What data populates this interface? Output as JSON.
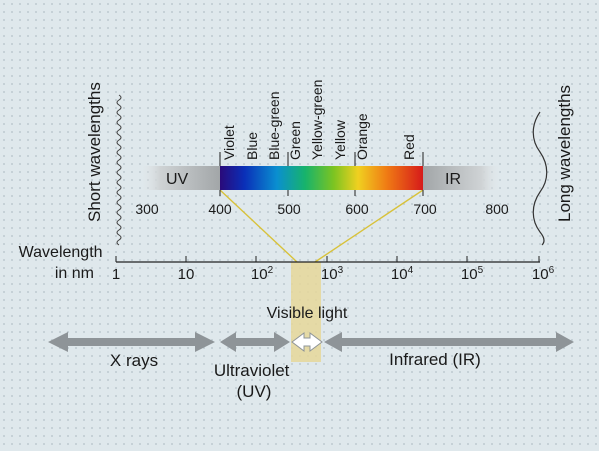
{
  "diagram": {
    "side_labels": {
      "short": "Short wavelengths",
      "long": "Long wavelengths"
    },
    "visible_bands": [
      {
        "name": "Violet"
      },
      {
        "name": "Blue"
      },
      {
        "name": "Blue-green"
      },
      {
        "name": "Green"
      },
      {
        "name": "Yellow-green"
      },
      {
        "name": "Yellow"
      },
      {
        "name": "Orange"
      },
      {
        "name": "Red"
      }
    ],
    "spectrum_bar": {
      "uv_label": "UV",
      "ir_label": "IR",
      "ticks": [
        "300",
        "400",
        "500",
        "600",
        "700",
        "800"
      ]
    },
    "wavelength_axis": {
      "label_line1": "Wavelength",
      "label_line2": "in nm",
      "ticks": [
        {
          "base": "1",
          "exp": ""
        },
        {
          "base": "10",
          "exp": ""
        },
        {
          "base": "10",
          "exp": "2"
        },
        {
          "base": "10",
          "exp": "3"
        },
        {
          "base": "10",
          "exp": "4"
        },
        {
          "base": "10",
          "exp": "5"
        },
        {
          "base": "10",
          "exp": "6"
        }
      ]
    },
    "regions": {
      "visible": "Visible light",
      "xrays": "X rays",
      "uv_line1": "Ultraviolet",
      "uv_line2": "(UV)",
      "infrared": "Infrared (IR)"
    },
    "colors": {
      "highlight": "#e6d79a",
      "connector": "#d8c23a",
      "arrow": "#8e9498",
      "spectrum": [
        "#2a0a7a",
        "#0a2fb8",
        "#0a8fd0",
        "#17b36b",
        "#7cc421",
        "#f0d020",
        "#f07c14",
        "#d61a1a"
      ]
    }
  }
}
